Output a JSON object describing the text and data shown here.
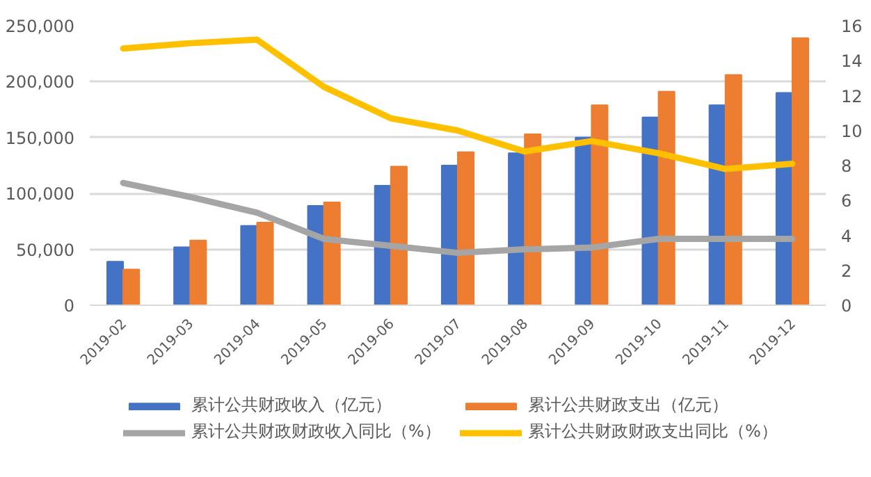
{
  "chart_data": {
    "type": "bar",
    "categories": [
      "2019-02",
      "2019-03",
      "2019-04",
      "2019-05",
      "2019-06",
      "2019-07",
      "2019-08",
      "2019-09",
      "2019-10",
      "2019-11",
      "2019-12"
    ],
    "series": [
      {
        "name": "累计公共财政收入（亿元）",
        "color": "#4472c4",
        "values": [
          39000,
          52000,
          71000,
          89000,
          107000,
          125000,
          136000,
          150000,
          168000,
          179000,
          190000
        ]
      },
      {
        "name": "累计公共财政支出（亿元）",
        "color": "#ed7d31",
        "values": [
          32000,
          58000,
          74000,
          92000,
          124000,
          137000,
          153000,
          179000,
          191000,
          206000,
          239000
        ]
      },
      {
        "name": "累计公共财政财政收入同比（%）",
        "type": "line",
        "axis": "y2",
        "color": "#a5a5a5",
        "values": [
          7.0,
          6.2,
          5.3,
          3.8,
          3.4,
          3.0,
          3.2,
          3.3,
          3.8,
          3.8,
          3.8
        ]
      },
      {
        "name": "累计公共财政财政支出同比（%）",
        "type": "line",
        "axis": "y2",
        "color": "#ffc000",
        "values": [
          14.7,
          15.0,
          15.2,
          12.5,
          10.7,
          10.0,
          8.8,
          9.4,
          8.7,
          7.8,
          8.1
        ]
      }
    ],
    "ylim": [
      0,
      250000
    ],
    "yticks": [
      {
        "value": 0,
        "label": "0"
      },
      {
        "value": 50000,
        "label": "50,000"
      },
      {
        "value": 100000,
        "label": "100,000"
      },
      {
        "value": 150000,
        "label": "150,000"
      },
      {
        "value": 200000,
        "label": "200,000"
      },
      {
        "value": 250000,
        "label": "250,000"
      }
    ],
    "y2lim": [
      0,
      16
    ],
    "y2ticks": [
      0,
      2,
      4,
      6,
      8,
      10,
      12,
      14,
      16
    ],
    "grid": "y",
    "legend": "bottom"
  }
}
